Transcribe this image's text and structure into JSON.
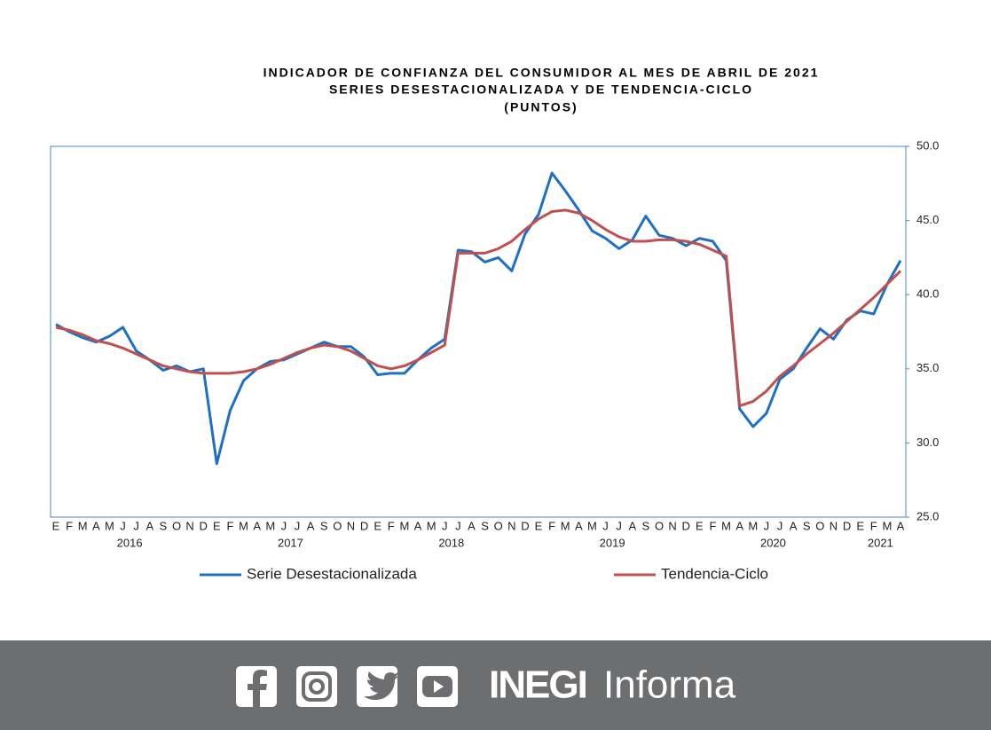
{
  "chart_data": {
    "type": "line",
    "title": [
      "INDICADOR DE CONFIANZA  DEL CONSUMIDOR AL MES DE ABRIL DE 2021",
      "SERIES DESESTACIONALIZADA  Y DE TENDENCIA-CICLO",
      "(PUNTOS)"
    ],
    "categories": [
      "E",
      "F",
      "M",
      "A",
      "M",
      "J",
      "J",
      "A",
      "S",
      "O",
      "N",
      "D",
      "E",
      "F",
      "M",
      "A",
      "M",
      "J",
      "J",
      "A",
      "S",
      "O",
      "N",
      "D",
      "E",
      "F",
      "M",
      "A",
      "M",
      "J",
      "J",
      "A",
      "S",
      "O",
      "N",
      "D",
      "E",
      "F",
      "M",
      "A",
      "M",
      "J",
      "J",
      "A",
      "S",
      "O",
      "N",
      "D",
      "E",
      "F",
      "M",
      "A",
      "M",
      "J",
      "J",
      "A",
      "S",
      "O",
      "N",
      "D",
      "E",
      "F",
      "M",
      "A"
    ],
    "years": [
      "2016",
      "2017",
      "2018",
      "2019",
      "2020",
      "2021"
    ],
    "ylim": [
      25,
      50
    ],
    "yticks": [
      {
        "value": 25,
        "label": "25.0"
      },
      {
        "value": 30,
        "label": "30.0"
      },
      {
        "value": 35,
        "label": "35.0"
      },
      {
        "value": 40,
        "label": "40.0"
      },
      {
        "value": 45,
        "label": "45.0"
      },
      {
        "value": 50,
        "label": "50.0"
      }
    ],
    "series": [
      {
        "name": "Serie Desestacionalizada",
        "color": "#1f6fc5",
        "values": [
          38.0,
          37.5,
          37.1,
          36.8,
          37.2,
          37.8,
          36.2,
          35.6,
          34.9,
          35.2,
          34.8,
          35.0,
          28.6,
          32.2,
          34.2,
          35.0,
          35.5,
          35.6,
          36.0,
          36.4,
          36.8,
          36.5,
          36.5,
          35.8,
          34.6,
          34.7,
          34.7,
          35.6,
          36.4,
          37.0,
          43.0,
          42.9,
          42.2,
          42.5,
          41.6,
          44.1,
          45.4,
          48.2,
          47.0,
          45.7,
          44.3,
          43.8,
          43.1,
          43.7,
          45.3,
          44.0,
          43.8,
          43.3,
          43.8,
          43.6,
          42.3,
          32.3,
          31.1,
          32.0,
          34.3,
          35.0,
          36.4,
          37.7,
          37.0,
          38.3,
          38.9,
          38.7,
          40.7,
          42.3
        ]
      },
      {
        "name": "Tendencia-Ciclo",
        "color": "#c0504d",
        "values": [
          37.8,
          37.6,
          37.3,
          36.9,
          36.7,
          36.4,
          36.0,
          35.6,
          35.2,
          35.0,
          34.8,
          34.7,
          34.7,
          34.7,
          34.8,
          35.0,
          35.3,
          35.7,
          36.1,
          36.4,
          36.6,
          36.5,
          36.2,
          35.7,
          35.2,
          35.0,
          35.2,
          35.6,
          36.1,
          36.6,
          42.8,
          42.8,
          42.8,
          43.1,
          43.6,
          44.4,
          45.1,
          45.6,
          45.7,
          45.5,
          45.0,
          44.4,
          43.9,
          43.6,
          43.6,
          43.7,
          43.7,
          43.6,
          43.4,
          43.0,
          42.6,
          32.5,
          32.8,
          33.5,
          34.5,
          35.2,
          36.0,
          36.7,
          37.4,
          38.2,
          39.0,
          39.8,
          40.7,
          41.6
        ]
      }
    ]
  },
  "footer": {
    "brand": "INEGI",
    "text": "Informa"
  }
}
